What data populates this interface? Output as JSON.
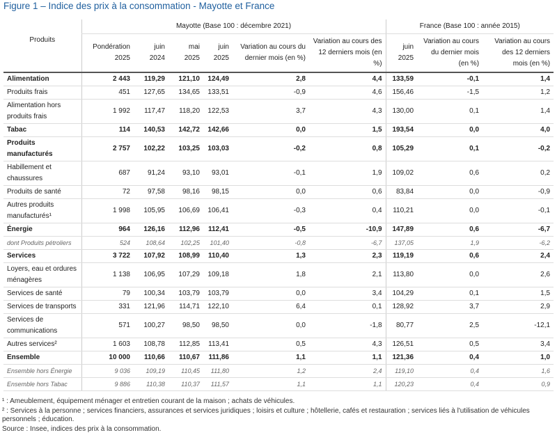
{
  "title": "Figure 1 – Indice des prix à la consommation - Mayotte et France",
  "table": {
    "group_headers": [
      "Mayotte (Base 100 : décembre 2021)",
      "France (Base 100 : année 2015)"
    ],
    "columns": [
      "Produits",
      "Pondération 2025",
      "juin 2024",
      "mai 2025",
      "juin 2025",
      "Variation au cours du dernier mois (en %)",
      "Variation au cours des 12 derniers mois (en %)",
      "juin 2025",
      "Variation au cours du dernier mois (en %)",
      "Variation au cours des 12 derniers mois (en %)"
    ],
    "rows": [
      {
        "label": "Alimentation",
        "cells": [
          "2 443",
          "119,29",
          "121,10",
          "124,49",
          "2,8",
          "4,4",
          "133,59",
          "-0,1",
          "1,4"
        ]
      },
      {
        "label": "Produits frais",
        "cells": [
          "451",
          "127,65",
          "134,65",
          "133,51",
          "-0,9",
          "4,6",
          "156,46",
          "-1,5",
          "1,2"
        ]
      },
      {
        "label": "Alimentation hors produits frais",
        "cells": [
          "1 992",
          "117,47",
          "118,20",
          "122,53",
          "3,7",
          "4,3",
          "130,00",
          "0,1",
          "1,4"
        ]
      },
      {
        "label": "Tabac",
        "cells": [
          "114",
          "140,53",
          "142,72",
          "142,66",
          "0,0",
          "1,5",
          "193,54",
          "0,0",
          "4,0"
        ]
      },
      {
        "label": "Produits manufacturés",
        "cells": [
          "2 757",
          "102,22",
          "103,25",
          "103,03",
          "-0,2",
          "0,8",
          "105,29",
          "0,1",
          "-0,2"
        ]
      },
      {
        "label": "Habillement et chaussures",
        "cells": [
          "687",
          "91,24",
          "93,10",
          "93,01",
          "-0,1",
          "1,9",
          "109,02",
          "0,6",
          "0,2"
        ]
      },
      {
        "label": "Produits de santé",
        "cells": [
          "72",
          "97,58",
          "98,16",
          "98,15",
          "0,0",
          "0,6",
          "83,84",
          "0,0",
          "-0,9"
        ]
      },
      {
        "label": "Autres produits manufacturés¹",
        "cells": [
          "1 998",
          "105,95",
          "106,69",
          "106,41",
          "-0,3",
          "0,4",
          "110,21",
          "0,0",
          "-0,1"
        ]
      },
      {
        "label": "Énergie",
        "cells": [
          "964",
          "126,16",
          "112,96",
          "112,41",
          "-0,5",
          "-10,9",
          "147,89",
          "0,6",
          "-6,7"
        ]
      },
      {
        "label": "dont Produits pétroliers",
        "cells": [
          "524",
          "108,64",
          "102,25",
          "101,40",
          "-0,8",
          "-6,7",
          "137,05",
          "1,9",
          "-6,2"
        ]
      },
      {
        "label": "Services",
        "cells": [
          "3 722",
          "107,92",
          "108,99",
          "110,40",
          "1,3",
          "2,3",
          "119,19",
          "0,6",
          "2,4"
        ]
      },
      {
        "label": "Loyers, eau et ordures ménagères",
        "cells": [
          "1 138",
          "106,95",
          "107,29",
          "109,18",
          "1,8",
          "2,1",
          "113,80",
          "0,0",
          "2,6"
        ]
      },
      {
        "label": "Services de santé",
        "cells": [
          "79",
          "100,34",
          "103,79",
          "103,79",
          "0,0",
          "3,4",
          "104,29",
          "0,1",
          "1,5"
        ]
      },
      {
        "label": "Services de transports",
        "cells": [
          "331",
          "121,96",
          "114,71",
          "122,10",
          "6,4",
          "0,1",
          "128,92",
          "3,7",
          "2,9"
        ]
      },
      {
        "label": "Services de communications",
        "cells": [
          "571",
          "100,27",
          "98,50",
          "98,50",
          "0,0",
          "-1,8",
          "80,77",
          "2,5",
          "-12,1"
        ]
      },
      {
        "label": "Autres services²",
        "cells": [
          "1 603",
          "108,78",
          "112,85",
          "113,41",
          "0,5",
          "4,3",
          "126,51",
          "0,5",
          "3,4"
        ]
      },
      {
        "label": "Ensemble",
        "cells": [
          "10 000",
          "110,66",
          "110,67",
          "111,86",
          "1,1",
          "1,1",
          "121,36",
          "0,4",
          "1,0"
        ]
      },
      {
        "label": "Ensemble hors Énergie",
        "cells": [
          "9 036",
          "109,19",
          "110,45",
          "111,80",
          "1,2",
          "2,4",
          "119,10",
          "0,4",
          "1,6"
        ]
      },
      {
        "label": "Ensemble hors Tabac",
        "cells": [
          "9 886",
          "110,38",
          "110,37",
          "111,57",
          "1,1",
          "1,1",
          "120,23",
          "0,4",
          "0,9"
        ]
      }
    ]
  },
  "footnotes": [
    "¹ : Ameublement, équipement ménager et entretien courant de la maison ; achats de véhicules.",
    "² : Services à la personne ; services financiers, assurances et services juridiques ; loisirs et culture ; hôtellerie, cafés et restauration ; services liés à l'utilisation de véhicules personnels ; éducation.",
    "Source : Insee, indices des prix à la consommation."
  ]
}
